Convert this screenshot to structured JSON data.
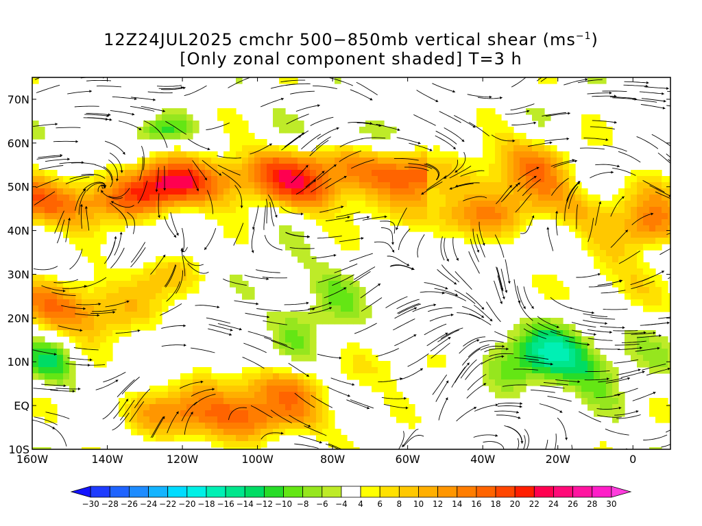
{
  "title": {
    "line1": "12Z24JUL2025 cmchr 500−850mb vertical shear (ms",
    "line1_unit_sup": "−1",
    "line1_end": ")",
    "line2": "[Only zonal component shaded] T=3 h"
  },
  "map": {
    "lon_range": [
      -160,
      10
    ],
    "lat_range": [
      -10,
      75
    ],
    "lat_labels": [
      {
        "lat": 70,
        "text": "70N"
      },
      {
        "lat": 60,
        "text": "60N"
      },
      {
        "lat": 50,
        "text": "50N"
      },
      {
        "lat": 40,
        "text": "40N"
      },
      {
        "lat": 30,
        "text": "30N"
      },
      {
        "lat": 20,
        "text": "20N"
      },
      {
        "lat": 10,
        "text": "10N"
      },
      {
        "lat": 0,
        "text": "EQ"
      },
      {
        "lat": -10,
        "text": "10S"
      }
    ],
    "lon_labels": [
      {
        "lon": -160,
        "text": "160W"
      },
      {
        "lon": -140,
        "text": "140W"
      },
      {
        "lon": -120,
        "text": "120W"
      },
      {
        "lon": -100,
        "text": "100W"
      },
      {
        "lon": -80,
        "text": "80W"
      },
      {
        "lon": -60,
        "text": "60W"
      },
      {
        "lon": -40,
        "text": "40W"
      },
      {
        "lon": -20,
        "text": "20W"
      },
      {
        "lon": 0,
        "text": "0"
      }
    ]
  },
  "colorbar": {
    "labels": [
      "−30",
      "−28",
      "−26",
      "−24",
      "−22",
      "−20",
      "−18",
      "−16",
      "−14",
      "−12",
      "−10",
      "−8",
      "−6",
      "−4",
      "4",
      "6",
      "8",
      "10",
      "12",
      "14",
      "16",
      "18",
      "20",
      "22",
      "24",
      "26",
      "28",
      "30"
    ],
    "colors": [
      "#1414ff",
      "#1e3cff",
      "#1f64ff",
      "#1e8cff",
      "#14b4ff",
      "#00dcff",
      "#00f0e6",
      "#00f0b4",
      "#00e68c",
      "#00dc64",
      "#28dc28",
      "#64e614",
      "#96e61e",
      "#beeb28",
      "#ffffff",
      "#ffff00",
      "#ffe100",
      "#ffc800",
      "#ffaf00",
      "#ff9600",
      "#ff7d00",
      "#ff6400",
      "#ff4600",
      "#ff1e00",
      "#ff0050",
      "#ff0a78",
      "#ff14a0",
      "#ff1ec8",
      "#ff3cdc"
    ]
  }
}
